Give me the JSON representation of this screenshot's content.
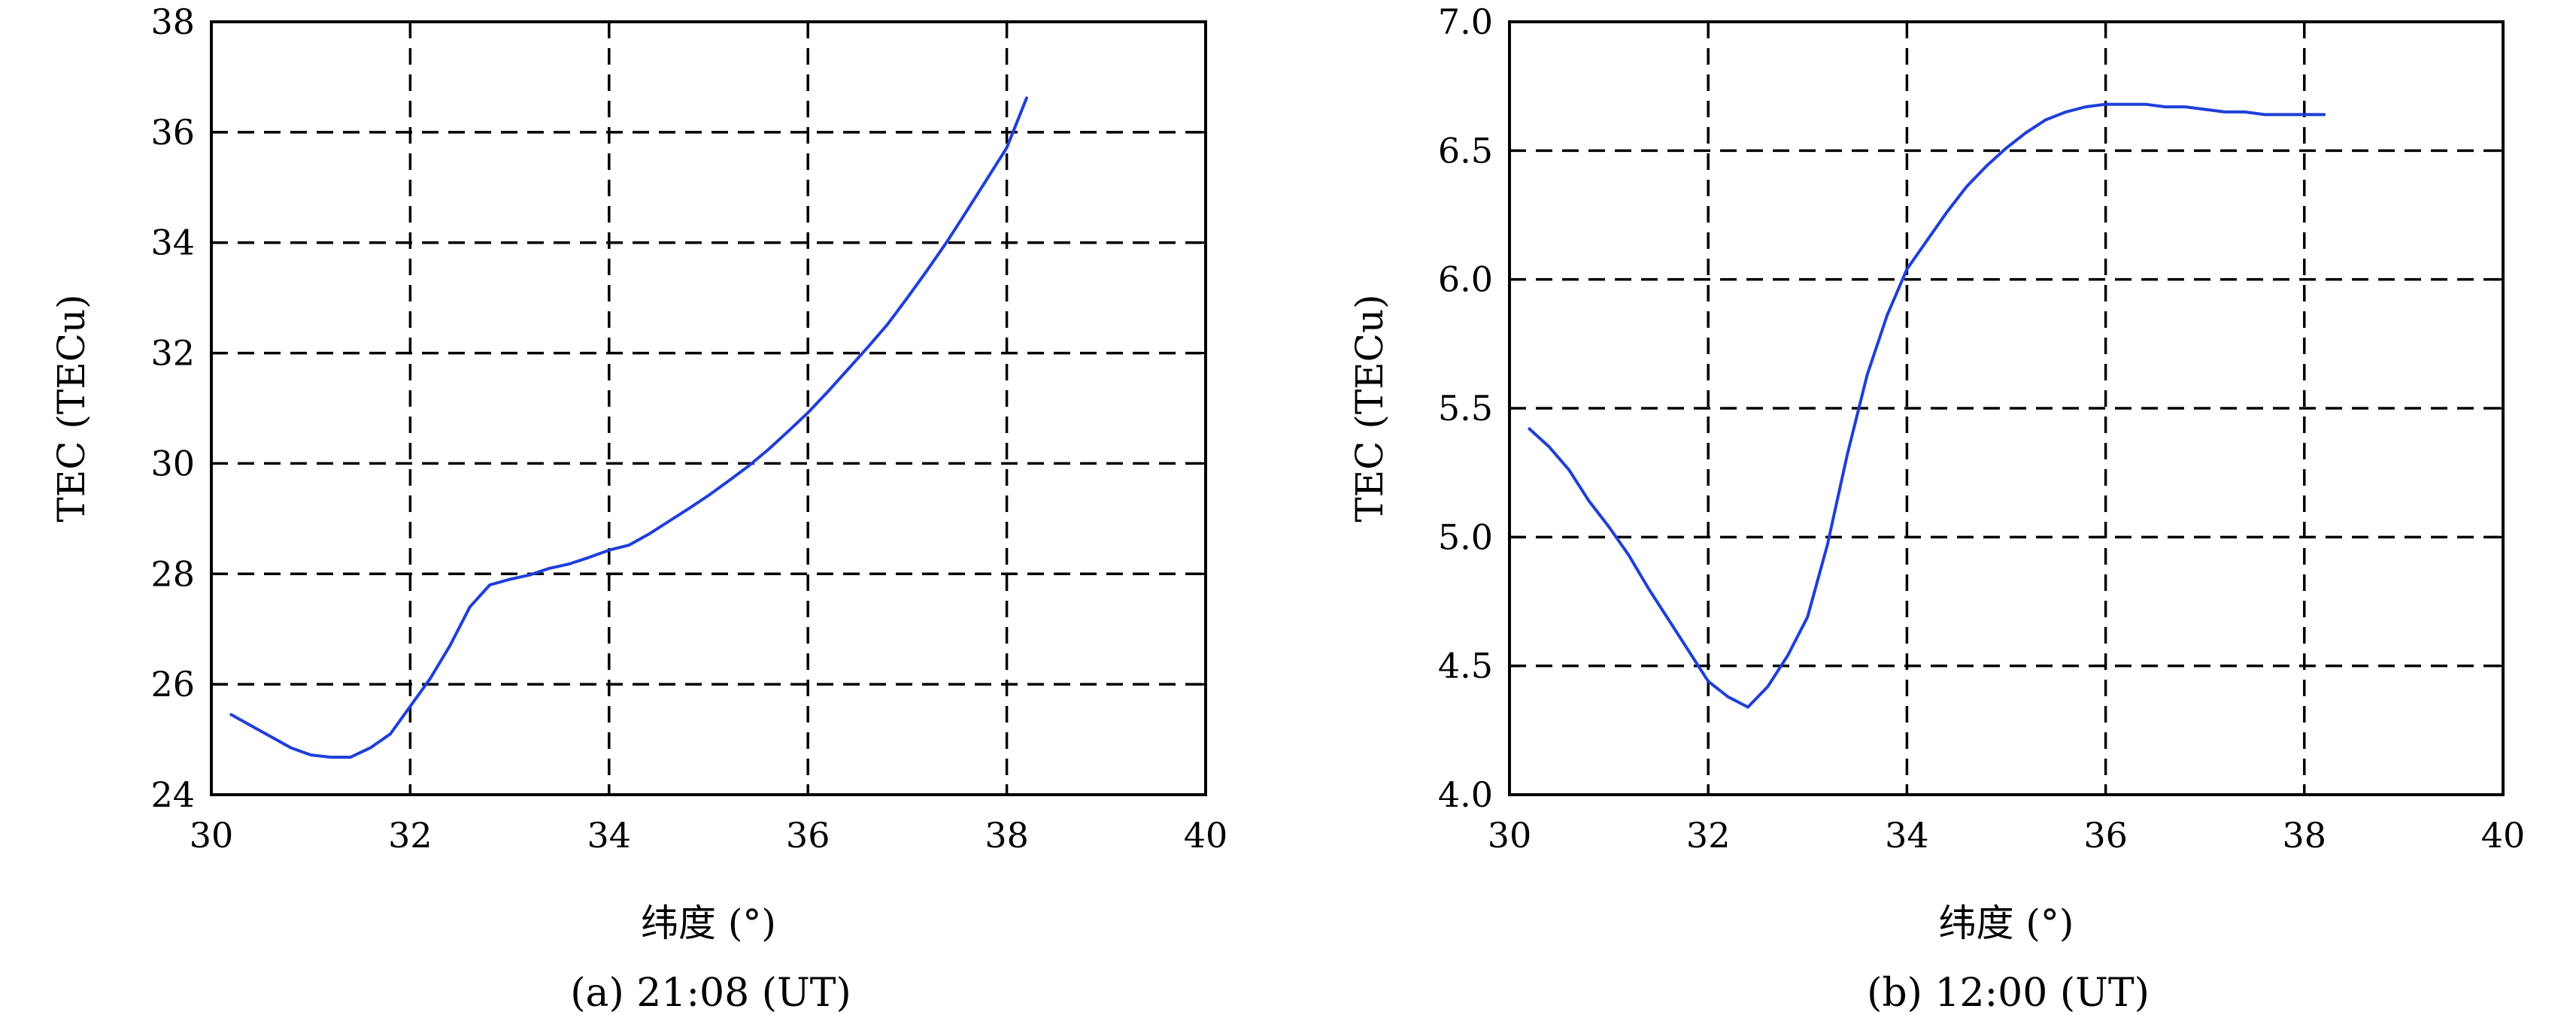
{
  "figure": {
    "captions": [
      "(a) 21:08 (UT)",
      "(b) 12:00 (UT)"
    ]
  },
  "chart_data": [
    {
      "type": "line",
      "caption": "(a) 21:08 (UT)",
      "xlabel": "纬度 (°)",
      "ylabel": "TEC (TECu)",
      "xlim": [
        30,
        40
      ],
      "ylim": [
        24,
        38
      ],
      "xticks": [
        30,
        32,
        34,
        36,
        38,
        40
      ],
      "yticks": [
        24,
        26,
        28,
        30,
        32,
        34,
        36,
        38
      ],
      "grid": "dashed",
      "line_color": "#1f3fd9",
      "series": [
        {
          "x": [
            30.2,
            30.4,
            30.6,
            30.8,
            31.0,
            31.2,
            31.4,
            31.6,
            31.8,
            32.0,
            32.2,
            32.4,
            32.6,
            32.8,
            33.0,
            33.2,
            33.4,
            33.6,
            33.8,
            34.0,
            34.2,
            34.4,
            34.6,
            34.8,
            35.0,
            35.2,
            35.4,
            35.6,
            35.8,
            36.0,
            36.2,
            36.4,
            36.6,
            36.8,
            37.0,
            37.2,
            37.4,
            37.6,
            37.8,
            38.0,
            38.2
          ],
          "y": [
            25.45,
            25.25,
            25.05,
            24.85,
            24.72,
            24.68,
            24.68,
            24.85,
            25.1,
            25.6,
            26.1,
            26.7,
            27.4,
            27.8,
            27.9,
            27.98,
            28.1,
            28.18,
            28.3,
            28.43,
            28.52,
            28.72,
            28.95,
            29.18,
            29.42,
            29.68,
            29.95,
            30.25,
            30.58,
            30.92,
            31.3,
            31.7,
            32.1,
            32.52,
            33.0,
            33.5,
            34.02,
            34.58,
            35.15,
            35.72,
            36.62
          ]
        }
      ]
    },
    {
      "type": "line",
      "caption": "(b) 12:00 (UT)",
      "xlabel": "纬度 (°)",
      "ylabel": "TEC (TECu)",
      "xlim": [
        30,
        40
      ],
      "ylim": [
        4.0,
        7.0
      ],
      "xticks": [
        30,
        32,
        34,
        36,
        38,
        40
      ],
      "yticks": [
        4.0,
        4.5,
        5.0,
        5.5,
        6.0,
        6.5,
        7.0
      ],
      "yticklabels": [
        "4.0",
        "4.5",
        "5.0",
        "5.5",
        "6.0",
        "6.5",
        "7.0"
      ],
      "grid": "dashed",
      "line_color": "#1f3fd9",
      "series": [
        {
          "x": [
            30.2,
            30.4,
            30.6,
            30.8,
            31.0,
            31.2,
            31.4,
            31.6,
            31.8,
            32.0,
            32.2,
            32.4,
            32.6,
            32.8,
            33.0,
            33.2,
            33.4,
            33.6,
            33.8,
            34.0,
            34.2,
            34.4,
            34.6,
            34.8,
            35.0,
            35.2,
            35.4,
            35.6,
            35.8,
            36.0,
            36.2,
            36.4,
            36.6,
            36.8,
            37.0,
            37.2,
            37.4,
            37.6,
            37.8,
            38.0,
            38.2
          ],
          "y": [
            5.42,
            5.35,
            5.26,
            5.14,
            5.04,
            4.93,
            4.8,
            4.68,
            4.56,
            4.44,
            4.38,
            4.34,
            4.42,
            4.54,
            4.69,
            4.97,
            5.32,
            5.63,
            5.86,
            6.04,
            6.15,
            6.26,
            6.36,
            6.44,
            6.51,
            6.57,
            6.62,
            6.65,
            6.67,
            6.68,
            6.68,
            6.68,
            6.67,
            6.67,
            6.66,
            6.65,
            6.65,
            6.64,
            6.64,
            6.64,
            6.64
          ]
        }
      ]
    }
  ]
}
